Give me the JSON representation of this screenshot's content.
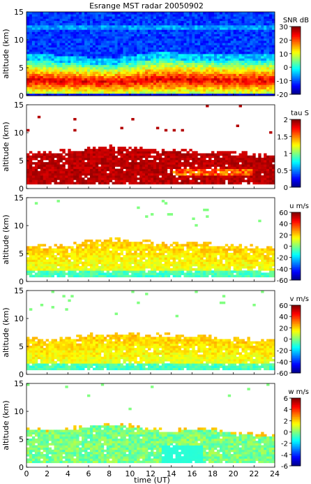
{
  "title": "Esrange MST radar 20050902",
  "xlabel": "time (UT)",
  "chart_data": [
    {
      "type": "heatmap",
      "ylabel": "altitude (km)",
      "x": [
        0,
        2,
        4,
        6,
        8,
        10,
        12,
        14,
        16,
        18,
        20,
        22,
        24
      ],
      "yticks": [
        0,
        5,
        10,
        15
      ],
      "xlim": [
        0,
        24
      ],
      "ylim": [
        0,
        15
      ],
      "colorbar": {
        "label": "SNR dB",
        "ticks": [
          -20,
          -10,
          0,
          10,
          20,
          30
        ],
        "range": [
          -20,
          30
        ]
      },
      "cloud_top_km": [
        6.4,
        6.2,
        5.9,
        5.7,
        5.5,
        5.9,
        6.5,
        6.6,
        6.3,
        6.3,
        6.2,
        6.2,
        6.3
      ]
    },
    {
      "type": "heatmap",
      "ylabel": "altitude (km)",
      "x": [
        0,
        2,
        4,
        6,
        8,
        10,
        12,
        14,
        16,
        18,
        20,
        22,
        24
      ],
      "yticks": [
        0,
        5,
        10,
        15
      ],
      "xlim": [
        0,
        24
      ],
      "ylim": [
        0,
        15
      ],
      "colorbar": {
        "label": "tau S",
        "ticks": [
          0,
          0.5,
          1,
          1.5,
          2
        ],
        "range": [
          0,
          2
        ]
      },
      "cloud_top_km": [
        6.5,
        6.3,
        6.5,
        7.0,
        7.3,
        7.0,
        6.7,
        6.6,
        6.4,
        6.2,
        6.1,
        6.0,
        5.9
      ]
    },
    {
      "type": "heatmap",
      "ylabel": "altitude (km)",
      "x": [
        0,
        2,
        4,
        6,
        8,
        10,
        12,
        14,
        16,
        18,
        20,
        22,
        24
      ],
      "yticks": [
        0,
        5,
        10,
        15
      ],
      "xlim": [
        0,
        24
      ],
      "ylim": [
        0,
        15
      ],
      "colorbar": {
        "label": "u m/s",
        "ticks": [
          -60,
          -40,
          -20,
          0,
          20,
          40,
          60
        ],
        "range": [
          -60,
          60
        ]
      },
      "cloud_top_km": [
        6.2,
        6.0,
        6.3,
        6.9,
        7.3,
        7.1,
        6.8,
        6.8,
        6.6,
        6.4,
        6.2,
        6.0,
        5.8
      ]
    },
    {
      "type": "heatmap",
      "ylabel": "altitude (km)",
      "x": [
        0,
        2,
        4,
        6,
        8,
        10,
        12,
        14,
        16,
        18,
        20,
        22,
        24
      ],
      "yticks": [
        0,
        5,
        10,
        15
      ],
      "xlim": [
        0,
        24
      ],
      "ylim": [
        0,
        15
      ],
      "colorbar": {
        "label": "v m/s",
        "ticks": [
          -60,
          -40,
          -20,
          0,
          20,
          40,
          60
        ],
        "range": [
          -60,
          60
        ]
      },
      "cloud_top_km": [
        6.3,
        5.9,
        6.2,
        6.8,
        7.2,
        7.0,
        6.8,
        6.9,
        6.7,
        6.4,
        6.2,
        6.0,
        6.0
      ]
    },
    {
      "type": "heatmap",
      "ylabel": "altitude (km)",
      "x": [
        0,
        2,
        4,
        6,
        8,
        10,
        12,
        14,
        16,
        18,
        20,
        22,
        24
      ],
      "yticks": [
        0,
        5,
        10,
        15
      ],
      "xlim": [
        0,
        24
      ],
      "ylim": [
        0,
        15
      ],
      "xticks": [
        0,
        2,
        4,
        6,
        8,
        10,
        12,
        14,
        16,
        18,
        20,
        22,
        24
      ],
      "colorbar": {
        "label": "w m/s",
        "ticks": [
          -6,
          -4,
          -2,
          0,
          2,
          4,
          6
        ],
        "range": [
          -6,
          6
        ]
      },
      "cloud_top_km": [
        6.8,
        6.5,
        6.6,
        7.3,
        7.6,
        7.2,
        6.7,
        6.2,
        6.9,
        6.6,
        6.0,
        5.7,
        5.5
      ]
    }
  ]
}
